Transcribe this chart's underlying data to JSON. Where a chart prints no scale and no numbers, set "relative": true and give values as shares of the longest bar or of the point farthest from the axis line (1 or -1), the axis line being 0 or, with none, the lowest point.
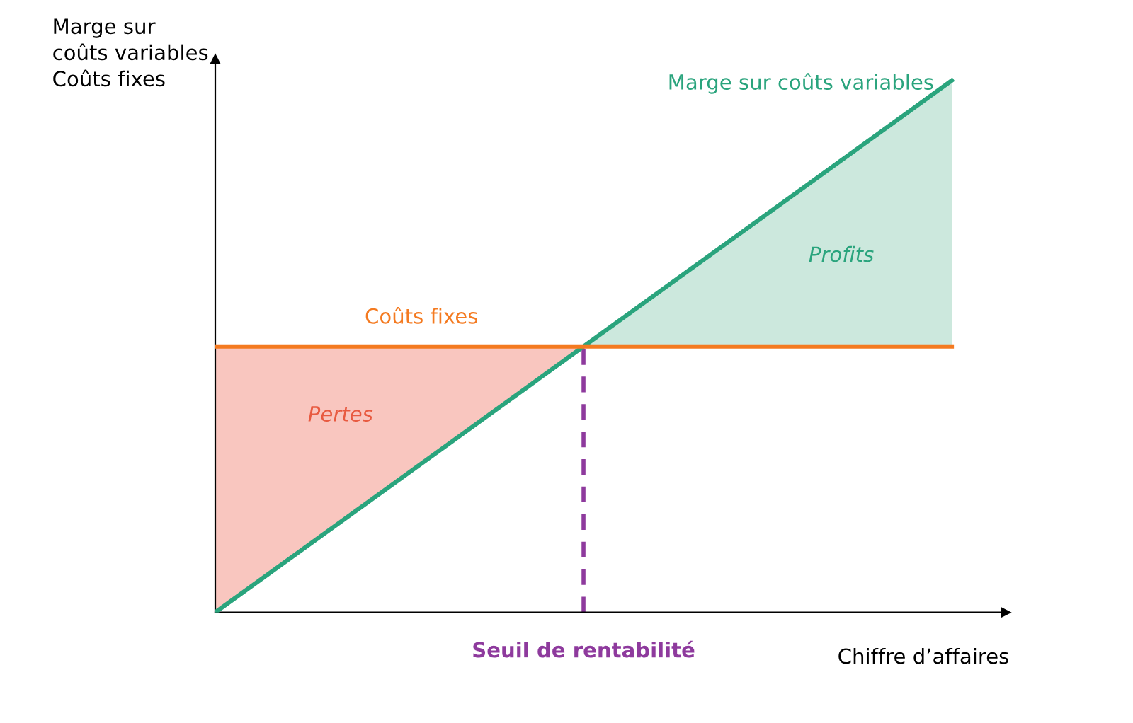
{
  "chart_data": {
    "type": "line",
    "relative": true,
    "xlabel": "Chiffre d’affaires",
    "ylabel": "Marge sur\ncoûts variables\nCoûts fixes",
    "categories": [
      null,
      null,
      null
    ],
    "legend": false,
    "marker": "none",
    "line_style": "solid",
    "series": [
      {
        "name": "Marge sur coûts variables",
        "color": "#2aa47d",
        "values": [
          0,
          0.5,
          1
        ]
      },
      {
        "name": "Coûts fixes",
        "color": "#f47a20",
        "values": [
          0.5,
          0.5,
          0.5
        ]
      }
    ],
    "annotations": [
      "Pertes",
      "Profits",
      "Seuil de rentabilité"
    ]
  }
}
